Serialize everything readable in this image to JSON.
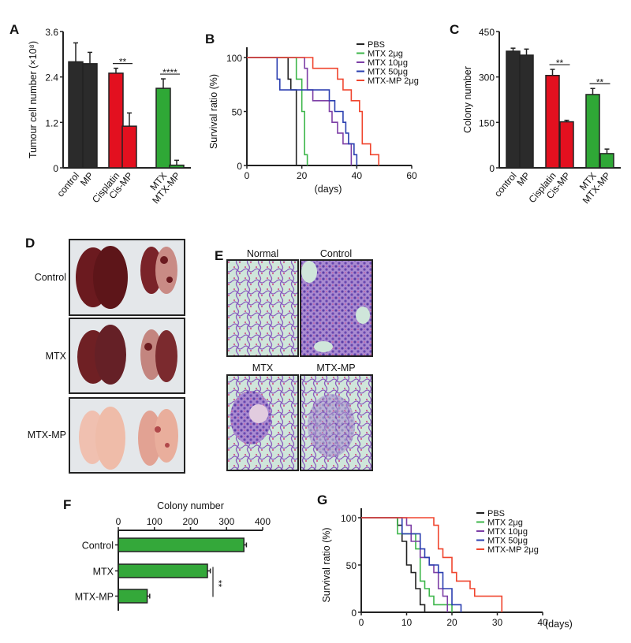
{
  "panel_labels": {
    "A": "A",
    "B": "B",
    "C": "C",
    "D": "D",
    "E": "E",
    "F": "F",
    "G": "G"
  },
  "chart_data": [
    {
      "id": "A",
      "type": "bar",
      "title": "",
      "ylabel": "Tumour cell number (×10⁸)",
      "xlabel": "",
      "ylim": [
        0,
        3.6
      ],
      "yticks": [
        "0",
        "1.2",
        "2.4",
        "3.6"
      ],
      "categories": [
        "control",
        "MP",
        "Cisplatin",
        "Cis-MP",
        "MTX",
        "MTX-MP"
      ],
      "values": [
        2.8,
        2.75,
        2.5,
        1.1,
        2.1,
        0.07
      ],
      "errors": [
        0.5,
        0.3,
        0.13,
        0.35,
        0.25,
        0.13
      ],
      "colors": [
        "#2b2b2b",
        "#2b2b2b",
        "#e3101f",
        "#e3101f",
        "#2fa836",
        "#2fa836"
      ],
      "annotations": [
        {
          "text": "**",
          "between": [
            2,
            3
          ]
        },
        {
          "text": "****",
          "between": [
            4,
            5
          ]
        }
      ]
    },
    {
      "id": "B",
      "type": "line",
      "step": true,
      "ylabel": "Survival ratio (%)",
      "xlabel": "(days)",
      "xlim": [
        0,
        60
      ],
      "ylim": [
        0,
        100
      ],
      "xticks": [
        "0",
        "20",
        "40",
        "60"
      ],
      "yticks": [
        "0",
        "50",
        "100"
      ],
      "legend": "top-right",
      "series": [
        {
          "name": "PBS",
          "color": "#222222",
          "points": [
            [
              0,
              100
            ],
            [
              15,
              80
            ],
            [
              16,
              70
            ],
            [
              18,
              0
            ]
          ]
        },
        {
          "name": "MTX 2μg",
          "color": "#3cb64a",
          "points": [
            [
              0,
              100
            ],
            [
              18,
              80
            ],
            [
              20,
              50
            ],
            [
              21,
              10
            ],
            [
              22,
              0
            ]
          ]
        },
        {
          "name": "MTX 10μg",
          "color": "#7d3fa6",
          "points": [
            [
              0,
              100
            ],
            [
              21,
              90
            ],
            [
              22,
              70
            ],
            [
              24,
              60
            ],
            [
              30,
              50
            ],
            [
              31,
              40
            ],
            [
              33,
              30
            ],
            [
              35,
              20
            ],
            [
              38,
              0
            ]
          ]
        },
        {
          "name": "MTX 50μg",
          "color": "#2b3fb0",
          "points": [
            [
              0,
              100
            ],
            [
              11,
              80
            ],
            [
              12,
              70
            ],
            [
              30,
              60
            ],
            [
              32,
              50
            ],
            [
              35,
              40
            ],
            [
              36,
              30
            ],
            [
              37,
              20
            ],
            [
              39,
              10
            ],
            [
              40,
              0
            ]
          ]
        },
        {
          "name": "MTX-MP 2μg",
          "color": "#f0452e",
          "points": [
            [
              0,
              100
            ],
            [
              24,
              90
            ],
            [
              33,
              80
            ],
            [
              35,
              70
            ],
            [
              38,
              60
            ],
            [
              41,
              50
            ],
            [
              42,
              20
            ],
            [
              45,
              10
            ],
            [
              48,
              0
            ]
          ]
        }
      ]
    },
    {
      "id": "C",
      "type": "bar",
      "ylabel": "Colony number",
      "xlabel": "",
      "ylim": [
        0,
        450
      ],
      "yticks": [
        "0",
        "150",
        "300",
        "450"
      ],
      "categories": [
        "control",
        "MP",
        "Cisplatin",
        "Cis-MP",
        "MTX",
        "MTX-MP"
      ],
      "values": [
        385,
        372,
        305,
        152,
        242,
        47
      ],
      "errors": [
        10,
        20,
        20,
        5,
        20,
        15
      ],
      "colors": [
        "#2b2b2b",
        "#2b2b2b",
        "#e3101f",
        "#e3101f",
        "#2fa836",
        "#2fa836"
      ],
      "annotations": [
        {
          "text": "**",
          "between": [
            2,
            3
          ]
        },
        {
          "text": "**",
          "between": [
            4,
            5
          ]
        }
      ]
    },
    {
      "id": "F",
      "type": "bar",
      "orientation": "horizontal",
      "xlabel": "Colony number",
      "xlim": [
        0,
        400
      ],
      "xticks": [
        "0",
        "100",
        "200",
        "300",
        "400"
      ],
      "categories": [
        "Control",
        "MTX",
        "MTX-MP"
      ],
      "values": [
        348,
        247,
        80
      ],
      "errors": [
        7,
        8,
        7
      ],
      "colors": [
        "#34a83a",
        "#34a83a",
        "#34a83a"
      ],
      "annotations": [
        {
          "text": "**",
          "between": [
            1,
            2
          ]
        }
      ]
    },
    {
      "id": "G",
      "type": "line",
      "step": true,
      "ylabel": "Survival ratio (%)",
      "xlabel": "(days)",
      "xlim": [
        0,
        40
      ],
      "ylim": [
        0,
        100
      ],
      "xticks": [
        "0",
        "10",
        "20",
        "30",
        "40"
      ],
      "yticks": [
        "0",
        "50",
        "100"
      ],
      "legend": "top-right",
      "series": [
        {
          "name": "PBS",
          "color": "#222222",
          "points": [
            [
              0,
              100
            ],
            [
              8,
              92
            ],
            [
              9,
              75
            ],
            [
              10,
              50
            ],
            [
              11,
              42
            ],
            [
              12,
              25
            ],
            [
              13,
              8
            ],
            [
              14,
              0
            ]
          ]
        },
        {
          "name": "MTX 2μg",
          "color": "#3cb64a",
          "points": [
            [
              0,
              100
            ],
            [
              8,
              83
            ],
            [
              12,
              67
            ],
            [
              13,
              33
            ],
            [
              14,
              25
            ],
            [
              15,
              17
            ],
            [
              16,
              8
            ],
            [
              20,
              0
            ]
          ]
        },
        {
          "name": "MTX 10μg",
          "color": "#7d3fa6",
          "points": [
            [
              0,
              100
            ],
            [
              10,
              92
            ],
            [
              11,
              75
            ],
            [
              13,
              58
            ],
            [
              15,
              50
            ],
            [
              16,
              42
            ],
            [
              17,
              25
            ],
            [
              18,
              17
            ],
            [
              19,
              0
            ]
          ]
        },
        {
          "name": "MTX 50μg",
          "color": "#2b3fb0",
          "points": [
            [
              0,
              100
            ],
            [
              9,
              83
            ],
            [
              13,
              67
            ],
            [
              14,
              58
            ],
            [
              15,
              50
            ],
            [
              17,
              42
            ],
            [
              18,
              25
            ],
            [
              20,
              8
            ],
            [
              22,
              0
            ]
          ]
        },
        {
          "name": "MTX-MP 2μg",
          "color": "#f0452e",
          "points": [
            [
              0,
              100
            ],
            [
              16,
              92
            ],
            [
              17,
              67
            ],
            [
              18,
              58
            ],
            [
              20,
              42
            ],
            [
              21,
              33
            ],
            [
              24,
              25
            ],
            [
              25,
              17
            ],
            [
              31,
              0
            ]
          ]
        }
      ]
    }
  ],
  "panel_d": {
    "rows": [
      "Control",
      "MTX",
      "MTX-MP"
    ]
  },
  "panel_e": {
    "titles": [
      "Normal",
      "Control",
      "MTX",
      "MTX-MP"
    ]
  }
}
